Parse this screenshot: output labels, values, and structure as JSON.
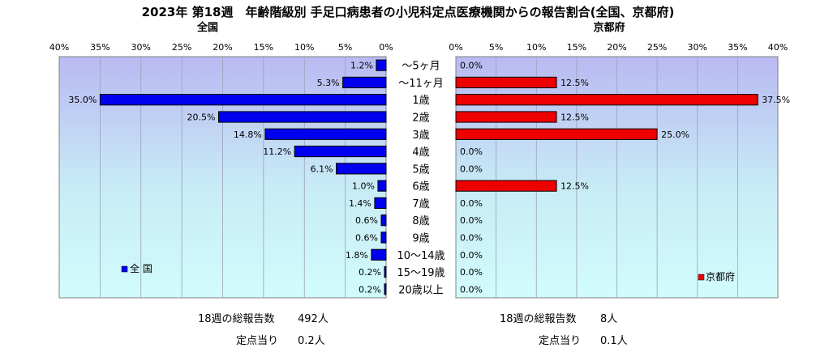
{
  "title": "2023年 第18週　年齢階級別 手足口病患者の小児科定点医療機関からの報告割合(全国、京都府)",
  "categories": [
    "～5ヶ月",
    "～11ヶ月",
    "1歳",
    "2歳",
    "3歳",
    "4歳",
    "5歳",
    "6歳",
    "7歳",
    "8歳",
    "9歳",
    "10～14歳",
    "15～19歳",
    "20歳以上"
  ],
  "chart_data": [
    {
      "type": "bar",
      "orientation": "horizontal",
      "title": "全国",
      "axis_direction": "reversed",
      "xlim": [
        0,
        40
      ],
      "ticks": [
        "0%",
        "5%",
        "10%",
        "15%",
        "20%",
        "25%",
        "30%",
        "35%",
        "40%"
      ],
      "categories": [
        "～5ヶ月",
        "～11ヶ月",
        "1歳",
        "2歳",
        "3歳",
        "4歳",
        "5歳",
        "6歳",
        "7歳",
        "8歳",
        "9歳",
        "10～14歳",
        "15～19歳",
        "20歳以上"
      ],
      "series": [
        {
          "name": "全 国",
          "color": "#0000ee",
          "values": [
            1.2,
            5.3,
            35.0,
            20.5,
            14.8,
            11.2,
            6.1,
            1.0,
            1.4,
            0.6,
            0.6,
            1.8,
            0.2,
            0.2
          ],
          "labels": [
            "1.2%",
            "5.3%",
            "35.0%",
            "20.5%",
            "14.8%",
            "11.2%",
            "6.1%",
            "1.0%",
            "1.4%",
            "0.6%",
            "0.6%",
            "1.8%",
            "0.2%",
            "0.2%"
          ]
        }
      ],
      "legend_position": "bottom-left",
      "grid": true
    },
    {
      "type": "bar",
      "orientation": "horizontal",
      "title": "京都府",
      "xlim": [
        0,
        40
      ],
      "ticks": [
        "0%",
        "5%",
        "10%",
        "15%",
        "20%",
        "25%",
        "30%",
        "35%",
        "40%"
      ],
      "categories": [
        "～5ヶ月",
        "～11ヶ月",
        "1歳",
        "2歳",
        "3歳",
        "4歳",
        "5歳",
        "6歳",
        "7歳",
        "8歳",
        "9歳",
        "10～14歳",
        "15～19歳",
        "20歳以上"
      ],
      "series": [
        {
          "name": "京都府",
          "color": "#ee0000",
          "values": [
            0.0,
            12.5,
            37.5,
            12.5,
            25.0,
            0.0,
            0.0,
            12.5,
            0.0,
            0.0,
            0.0,
            0.0,
            0.0,
            0.0
          ],
          "labels": [
            "0.0%",
            "12.5%",
            "37.5%",
            "12.5%",
            "25.0%",
            "0.0%",
            "0.0%",
            "12.5%",
            "0.0%",
            "0.0%",
            "0.0%",
            "0.0%",
            "0.0%",
            "0.0%"
          ]
        }
      ],
      "legend_position": "bottom-right",
      "grid": true
    }
  ],
  "footer": {
    "national_total_label": "18週の総報告数",
    "national_total_value": "492人",
    "national_per_label": "定点当り",
    "national_per_value": "0.2人",
    "kyoto_total_label": "18週の総報告数",
    "kyoto_total_value": "8人",
    "kyoto_per_label": "定点当り",
    "kyoto_per_value": "0.1人"
  }
}
